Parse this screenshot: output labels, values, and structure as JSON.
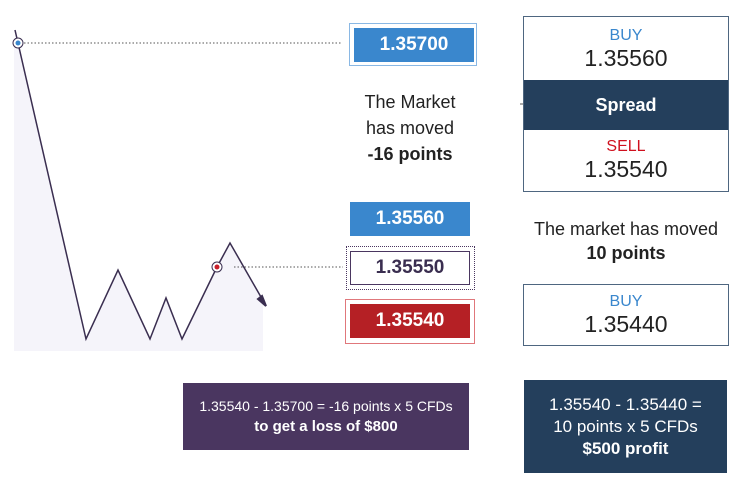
{
  "prices": {
    "open": "1.35700",
    "buy_now": "1.35560",
    "mid_now": "1.35550",
    "sell_now": "1.35540"
  },
  "left_message": {
    "line1": "The Market",
    "line2": "has moved",
    "line3": "-16 points"
  },
  "quote_card": {
    "buy_label": "BUY",
    "buy_value": "1.35560",
    "spread_label": "Spread",
    "sell_label": "SELL",
    "sell_value": "1.35540"
  },
  "right_message": {
    "line1": "The market has moved",
    "line2": "10 points"
  },
  "buy_card": {
    "label": "BUY",
    "value": "1.35440"
  },
  "loss_box": {
    "line1": "1.35540 - 1.35700 = -16 points x 5 CFDs",
    "line2": "to get a loss of $800"
  },
  "profit_box": {
    "line1": "1.35540 - 1.35440 =",
    "line2": "10 points x 5 CFDs",
    "line3": "$500 profit"
  },
  "colors": {
    "blue": "#3a87cd",
    "red": "#b52025",
    "purple": "#4a3660",
    "navy": "#243f5c",
    "sell_red": "#d0101e",
    "chart_fill": "#f5f4fa"
  }
}
